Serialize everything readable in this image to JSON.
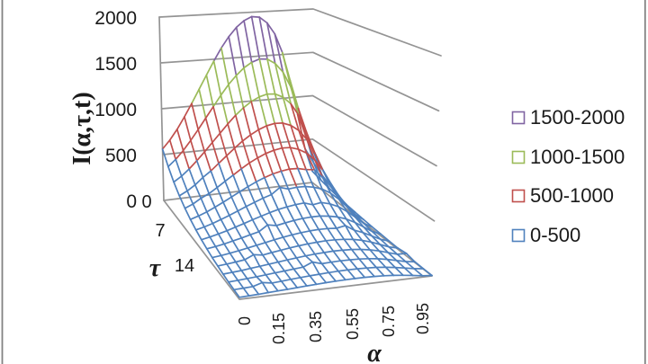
{
  "chart_data": {
    "type": "surface3d-wireframe",
    "z_axis": {
      "label": "I(α,τ,t)",
      "min": 0,
      "max": 2000,
      "ticks": [
        "0",
        "500",
        "1000",
        "1500",
        "2000"
      ]
    },
    "tau_axis": {
      "label": "τ",
      "ticks": [
        "0",
        "7",
        "14"
      ]
    },
    "alpha_axis": {
      "label": "α",
      "ticks": [
        "0",
        "0.15",
        "0.35",
        "0.55",
        "0.75",
        "0.95"
      ]
    },
    "legend": [
      {
        "label": "1500-2000",
        "color": "#8064A2",
        "min": 1500
      },
      {
        "label": "1000-1500",
        "color": "#9BBB59",
        "min": 1000
      },
      {
        "label": "500-1000",
        "color": "#C0504D",
        "min": 500
      },
      {
        "label": "0-500",
        "color": "#4F81BD",
        "min": 0
      }
    ],
    "surface": {
      "alpha_values": [
        0,
        0.05,
        0.1,
        0.15,
        0.2,
        0.25,
        0.3,
        0.35,
        0.4,
        0.45,
        0.5,
        0.55,
        0.6,
        0.65,
        0.7,
        0.75,
        0.8,
        0.85,
        0.9,
        0.95,
        1.0
      ],
      "tau_values": [
        0,
        1,
        2,
        3,
        4,
        5,
        6,
        7,
        8,
        9,
        10,
        11,
        12,
        13,
        14
      ],
      "values": [
        [
          560,
          650,
          760,
          890,
          1030,
          1180,
          1330,
          1480,
          1620,
          1740,
          1840,
          1910,
          1950,
          1940,
          1870,
          1740,
          1520,
          1200,
          800,
          400,
          130
        ],
        [
          437,
          507,
          593,
          694,
          803,
          920,
          1037,
          1154,
          1264,
          1357,
          1435,
          1490,
          1521,
          1513,
          1459,
          1357,
          1186,
          936,
          624,
          312,
          101
        ],
        [
          341,
          395,
          462,
          541,
          627,
          718,
          809,
          900,
          986,
          1059,
          1119,
          1162,
          1186,
          1180,
          1138,
          1059,
          925,
          730,
          487,
          243,
          79
        ],
        [
          266,
          308,
          361,
          430,
          489,
          560,
          631,
          702,
          769,
          826,
          873,
          907,
          925,
          921,
          888,
          826,
          721,
          570,
          380,
          190,
          62
        ],
        [
          207,
          241,
          290,
          329,
          381,
          437,
          492,
          548,
          600,
          644,
          681,
          707,
          722,
          718,
          692,
          644,
          563,
          444,
          296,
          148,
          48
        ],
        [
          162,
          188,
          219,
          257,
          297,
          341,
          384,
          427,
          468,
          502,
          531,
          551,
          563,
          560,
          540,
          530,
          439,
          346,
          231,
          115,
          38
        ],
        [
          126,
          146,
          171,
          200,
          232,
          266,
          300,
          333,
          365,
          392,
          455,
          430,
          439,
          437,
          421,
          392,
          342,
          270,
          180,
          90,
          29
        ],
        [
          98,
          114,
          134,
          156,
          181,
          207,
          234,
          260,
          285,
          306,
          323,
          336,
          343,
          316,
          329,
          306,
          267,
          211,
          141,
          70,
          23
        ],
        [
          77,
          89,
          104,
          122,
          141,
          162,
          182,
          238,
          222,
          238,
          252,
          262,
          267,
          266,
          256,
          238,
          208,
          164,
          110,
          55,
          18
        ],
        [
          60,
          69,
          81,
          95,
          110,
          126,
          142,
          158,
          173,
          186,
          197,
          204,
          208,
          207,
          200,
          216,
          162,
          128,
          86,
          43,
          14
        ],
        [
          47,
          54,
          63,
          74,
          111,
          98,
          111,
          123,
          135,
          145,
          153,
          159,
          163,
          162,
          156,
          145,
          127,
          100,
          67,
          33,
          11
        ],
        [
          36,
          42,
          49,
          58,
          67,
          77,
          86,
          96,
          105,
          113,
          120,
          124,
          127,
          126,
          122,
          113,
          99,
          78,
          52,
          26,
          23
        ],
        [
          28,
          33,
          39,
          45,
          52,
          60,
          67,
          75,
          82,
          118,
          93,
          97,
          99,
          98,
          95,
          88,
          77,
          61,
          41,
          20,
          7
        ],
        [
          22,
          26,
          30,
          55,
          41,
          47,
          53,
          59,
          64,
          69,
          73,
          76,
          77,
          77,
          74,
          69,
          60,
          48,
          32,
          16,
          5
        ],
        [
          17,
          20,
          23,
          28,
          32,
          36,
          41,
          46,
          50,
          54,
          57,
          59,
          60,
          60,
          58,
          54,
          47,
          37,
          25,
          12,
          4
        ]
      ]
    }
  },
  "colors": {
    "gridline": "#949494",
    "box_edge": "#949494",
    "page_border": "#828282",
    "text": "#1a1a1a"
  }
}
